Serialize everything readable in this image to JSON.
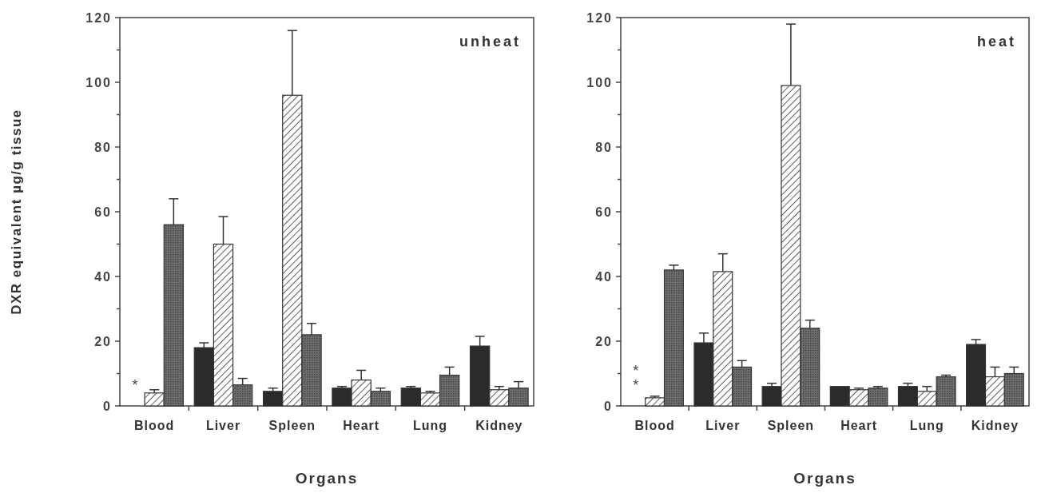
{
  "chart_data": [
    {
      "type": "bar",
      "ylabel": "DXR equivalent µg/g tissue",
      "xlabel": "Organs",
      "categories": [
        "Blood",
        "Liver",
        "Spleen",
        "Heart",
        "Lung",
        "Kidney"
      ],
      "ylim": [
        0,
        120
      ],
      "yticks": [
        0,
        {
          "value": 10,
          "label": null
        },
        20,
        {
          "value": 30,
          "label": null
        },
        40,
        {
          "value": 50,
          "label": null
        },
        60,
        {
          "value": 70,
          "label": null
        },
        80,
        {
          "value": 90,
          "label": null
        },
        100,
        {
          "value": 110,
          "label": null
        },
        120
      ],
      "annotations": [
        "unheat",
        "*"
      ],
      "series": [
        {
          "color": "#2b2b2b",
          "values": [
            null,
            18,
            4.5,
            5.5,
            5.5,
            18.5
          ],
          "errors": [
            null,
            [
              18,
              19.5
            ],
            [
              4.5,
              5.5
            ],
            [
              5.5,
              6
            ],
            [
              5.5,
              6
            ],
            [
              18.5,
              21.5
            ]
          ]
        },
        {
          "color": "#ffffff",
          "values": [
            4,
            50,
            96,
            8,
            4,
            5
          ],
          "errors": [
            [
              4,
              5
            ],
            [
              50,
              58.5
            ],
            [
              96,
              116
            ],
            [
              8,
              11
            ],
            [
              4,
              4.5
            ],
            [
              5,
              6
            ]
          ]
        },
        {
          "color": "#6e6e6e",
          "values": [
            56,
            6.5,
            22,
            4.5,
            9.5,
            5.5
          ],
          "errors": [
            [
              56,
              64
            ],
            [
              6.5,
              8.5
            ],
            [
              22,
              25.5
            ],
            [
              4.5,
              5.5
            ],
            [
              9.5,
              12
            ],
            [
              5.5,
              7.5
            ]
          ]
        }
      ]
    },
    {
      "type": "bar",
      "xlabel": "Organs",
      "categories": [
        "Blood",
        "Liver",
        "Spleen",
        "Heart",
        "Lung",
        "Kidney"
      ],
      "ylim": [
        0,
        120
      ],
      "yticks": [
        0,
        {
          "value": 10,
          "label": null
        },
        20,
        {
          "value": 30,
          "label": null
        },
        40,
        {
          "value": 50,
          "label": null
        },
        60,
        {
          "value": 70,
          "label": null
        },
        80,
        {
          "value": 90,
          "label": null
        },
        100,
        {
          "value": 110,
          "label": null
        },
        120
      ],
      "annotations": [
        "heat",
        "**"
      ],
      "series": [
        {
          "color": "#2b2b2b",
          "values": [
            null,
            19.5,
            6,
            6,
            6,
            19
          ],
          "errors": [
            null,
            [
              19.5,
              22.5
            ],
            [
              6,
              7
            ],
            null,
            [
              6,
              7
            ],
            [
              19,
              20.5
            ]
          ]
        },
        {
          "color": "#ffffff",
          "values": [
            2.5,
            41.5,
            99,
            5,
            4.5,
            9
          ],
          "errors": [
            [
              2.5,
              3
            ],
            [
              41.5,
              47
            ],
            [
              99,
              118
            ],
            [
              5,
              5.5
            ],
            [
              4.5,
              6
            ],
            [
              9,
              12
            ]
          ]
        },
        {
          "color": "#6e6e6e",
          "values": [
            42,
            12,
            24,
            5.5,
            9,
            10
          ],
          "errors": [
            [
              42,
              43.5
            ],
            [
              12,
              14
            ],
            [
              24,
              26.5
            ],
            [
              5.5,
              6
            ],
            [
              9,
              9.5
            ],
            [
              10,
              12
            ]
          ]
        }
      ]
    }
  ]
}
